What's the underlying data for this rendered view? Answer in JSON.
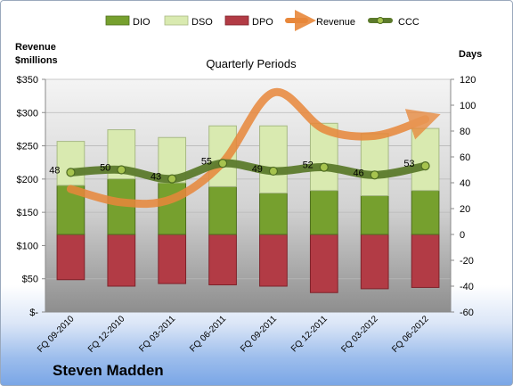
{
  "chart_data": {
    "type": "bar",
    "title": "Quarterly Periods",
    "company": "Steven Madden",
    "left_axis_label_line1": "Revenue",
    "left_axis_label_line2": "$millions",
    "right_axis_label": "Days",
    "categories": [
      "FQ 09-2010",
      "FQ 12-2010",
      "FQ 03-2011",
      "FQ 06-2011",
      "FQ 09-2011",
      "FQ 12-2011",
      "FQ 03-2012",
      "FQ 06-2012"
    ],
    "left_ticks": [
      "$-",
      "$50",
      "$100",
      "$150",
      "$200",
      "$250",
      "$300",
      "$350"
    ],
    "left_ylim": [
      0,
      350
    ],
    "right_ticks": [
      "-60",
      "-40",
      "-20",
      "0",
      "20",
      "40",
      "60",
      "80",
      "100",
      "120"
    ],
    "right_ylim": [
      -60,
      120
    ],
    "grid": true,
    "legend_position": "top",
    "series": [
      {
        "name": "DIO",
        "type": "bar",
        "axis": "right",
        "color": "#76a02e",
        "values": [
          38,
          43,
          40,
          37,
          32,
          34,
          30,
          34
        ]
      },
      {
        "name": "DSO",
        "type": "bar",
        "axis": "right",
        "color": "#d9eab0",
        "values": [
          34,
          38,
          35,
          47,
          52,
          52,
          48,
          48
        ]
      },
      {
        "name": "DPO",
        "type": "bar",
        "axis": "right",
        "color": "#b23b45",
        "values": [
          -35,
          -40,
          -38,
          -39,
          -40,
          -45,
          -42,
          -41
        ]
      },
      {
        "name": "Revenue",
        "type": "line",
        "axis": "left",
        "color": "#e8873a",
        "values": [
          185,
          165,
          170,
          225,
          330,
          275,
          265,
          290
        ]
      },
      {
        "name": "CCC",
        "type": "line",
        "axis": "right",
        "color": "#5c7a2c",
        "values": [
          48,
          50,
          43,
          55,
          49,
          52,
          46,
          53
        ],
        "labels": [
          "48",
          "50",
          "43",
          "55",
          "49",
          "52",
          "46",
          "53"
        ]
      }
    ]
  }
}
